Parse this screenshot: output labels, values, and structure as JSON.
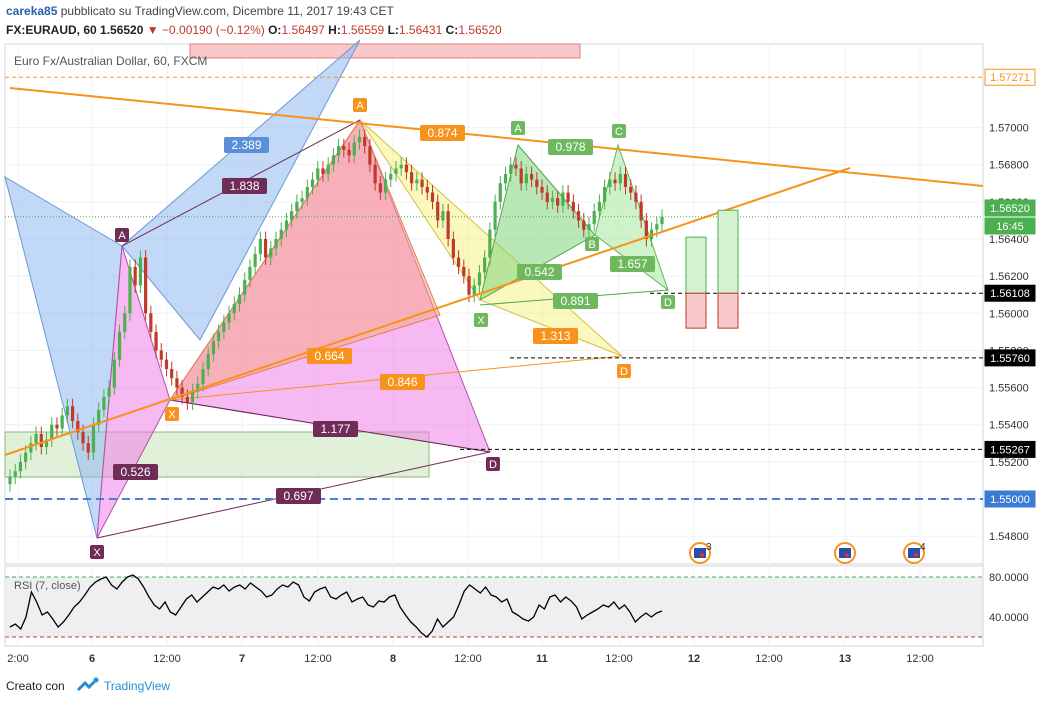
{
  "header": {
    "author": "careka85",
    "published_text": "pubblicato su TradingView.com, Dicembre 11, 2017 19:43 CET",
    "symbol": "FX:EURAUD, 60",
    "price": "1.56520",
    "change": "−0.00190 (−0.12%)",
    "o_label": "O:",
    "o_value": "1.56497",
    "h_label": "H:",
    "h_value": "1.56559",
    "l_label": "L:",
    "l_value": "1.56431",
    "c_label": "C:",
    "c_value": "1.56520"
  },
  "footer": {
    "created_with": "Creato con",
    "brand": "TradingView"
  },
  "colors": {
    "orange": "#f7931a",
    "blue_pattern": "#8fb8f0",
    "pink_pattern": "#f080e6",
    "salmon_pattern": "#f7a88a",
    "yellow_pattern": "#f5f08a",
    "green_pattern": "#7fd67a",
    "light_green_pattern": "#a8e8a0",
    "dark_purple": "#6e2c57",
    "candle_up": "#4caf50",
    "candle_down": "#c0392b"
  },
  "chart_data": {
    "type": "candlestick",
    "title": "Euro Fx/Australian Dollar, 60, FXCM",
    "ylim": [
      1.5465,
      1.5745
    ],
    "y_ticks": [
      "1.54800",
      "1.55000",
      "1.55200",
      "1.55400",
      "1.55600",
      "1.55800",
      "1.56000",
      "1.56200",
      "1.56400",
      "1.56600",
      "1.56800",
      "1.57000"
    ],
    "x_ticks": [
      "2:00",
      "6",
      "12:00",
      "7",
      "12:00",
      "8",
      "12:00",
      "11",
      "12:00",
      "12",
      "12:00",
      "13",
      "12:00"
    ],
    "price_labels": [
      {
        "text": "1.57271",
        "value": 1.57271,
        "style": "orange"
      },
      {
        "text": "1.56520",
        "value": 1.5652,
        "style": "green"
      },
      {
        "text": "16:45",
        "value": 1.564,
        "style": "green"
      },
      {
        "text": "1.56108",
        "value": 1.56108,
        "style": "black"
      },
      {
        "text": "1.55760",
        "value": 1.5576,
        "style": "black"
      },
      {
        "text": "1.55267",
        "value": 1.55267,
        "style": "black"
      },
      {
        "text": "1.55000",
        "value": 1.55,
        "style": "blue"
      }
    ],
    "candles_close": [
      1.5512,
      1.5515,
      1.552,
      1.5525,
      1.553,
      1.5535,
      1.5528,
      1.5532,
      1.554,
      1.5538,
      1.5545,
      1.555,
      1.5542,
      1.5536,
      1.553,
      1.5525,
      1.554,
      1.5548,
      1.5555,
      1.556,
      1.5575,
      1.559,
      1.56,
      1.5625,
      1.5615,
      1.563,
      1.56,
      1.559,
      1.558,
      1.5575,
      1.557,
      1.5565,
      1.556,
      1.5555,
      1.5552,
      1.5558,
      1.5562,
      1.557,
      1.5578,
      1.5585,
      1.559,
      1.5595,
      1.56,
      1.5605,
      1.561,
      1.5618,
      1.5625,
      1.5632,
      1.564,
      1.563,
      1.5635,
      1.564,
      1.5645,
      1.565,
      1.5655,
      1.566,
      1.5662,
      1.5668,
      1.5672,
      1.5678,
      1.5675,
      1.568,
      1.5685,
      1.569,
      1.5688,
      1.5685,
      1.5692,
      1.5695,
      1.569,
      1.568,
      1.567,
      1.5665,
      1.5672,
      1.5675,
      1.5678,
      1.568,
      1.5676,
      1.567,
      1.5672,
      1.5668,
      1.5665,
      1.566,
      1.565,
      1.5655,
      1.564,
      1.563,
      1.5625,
      1.562,
      1.561,
      1.5615,
      1.5622,
      1.563,
      1.5645,
      1.566,
      1.567,
      1.5675,
      1.568,
      1.5678,
      1.567,
      1.5675,
      1.5672,
      1.5668,
      1.5665,
      1.566,
      1.5662,
      1.5658,
      1.5665,
      1.566,
      1.5655,
      1.565,
      1.5645,
      1.5648,
      1.5655,
      1.566,
      1.5668,
      1.5672,
      1.567,
      1.5675,
      1.5668,
      1.5665,
      1.566,
      1.565,
      1.564,
      1.5645,
      1.5648,
      1.5652
    ],
    "rsi": {
      "label": "RSI (7, close)",
      "upper": 80,
      "lower": 20,
      "ticks": [
        "80.0000",
        "40.0000"
      ],
      "values": [
        30,
        33,
        28,
        40,
        65,
        55,
        42,
        45,
        38,
        30,
        35,
        42,
        50,
        55,
        62,
        70,
        75,
        78,
        80,
        72,
        68,
        75,
        80,
        82,
        78,
        70,
        60,
        52,
        48,
        55,
        45,
        42,
        50,
        58,
        62,
        55,
        60,
        65,
        70,
        68,
        72,
        66,
        70,
        72,
        68,
        74,
        70,
        66,
        60,
        62,
        68,
        72,
        70,
        75,
        72,
        60,
        56,
        65,
        68,
        70,
        60,
        58,
        62,
        65,
        55,
        58,
        60,
        52,
        50,
        56,
        55,
        60,
        62,
        50,
        42,
        35,
        30,
        24,
        20,
        26,
        38,
        30,
        35,
        40,
        52,
        66,
        72,
        68,
        64,
        70,
        62,
        60,
        55,
        58,
        45,
        42,
        38,
        36,
        40,
        52,
        48,
        60,
        62,
        55,
        60,
        56,
        50,
        38,
        42,
        45,
        48,
        52,
        50,
        55,
        48,
        52,
        45,
        35,
        40,
        44,
        40,
        44,
        46
      ]
    },
    "annotations": [
      {
        "text": "2.389",
        "style": "blue"
      },
      {
        "text": "1.838",
        "style": "purple"
      },
      {
        "text": "0.526",
        "style": "purple"
      },
      {
        "text": "0.697",
        "style": "purple"
      },
      {
        "text": "1.177",
        "style": "purple"
      },
      {
        "text": "0.874",
        "style": "orange"
      },
      {
        "text": "0.664",
        "style": "orange"
      },
      {
        "text": "0.846",
        "style": "orange"
      },
      {
        "text": "1.313",
        "style": "orange"
      },
      {
        "text": "0.542",
        "style": "green"
      },
      {
        "text": "0.891",
        "style": "green"
      },
      {
        "text": "0.978",
        "style": "green"
      },
      {
        "text": "1.657",
        "style": "green"
      }
    ],
    "point_labels": [
      {
        "text": "A",
        "style": "purple"
      },
      {
        "text": "X",
        "style": "purple"
      },
      {
        "text": "D",
        "style": "purple"
      },
      {
        "text": "A",
        "style": "orange"
      },
      {
        "text": "X",
        "style": "orange"
      },
      {
        "text": "D",
        "style": "orange"
      },
      {
        "text": "A",
        "style": "green"
      },
      {
        "text": "X",
        "style": "green"
      },
      {
        "text": "B",
        "style": "green"
      },
      {
        "text": "C",
        "style": "green"
      },
      {
        "text": "D",
        "style": "green"
      }
    ],
    "event_counts": [
      "3",
      "4"
    ]
  }
}
